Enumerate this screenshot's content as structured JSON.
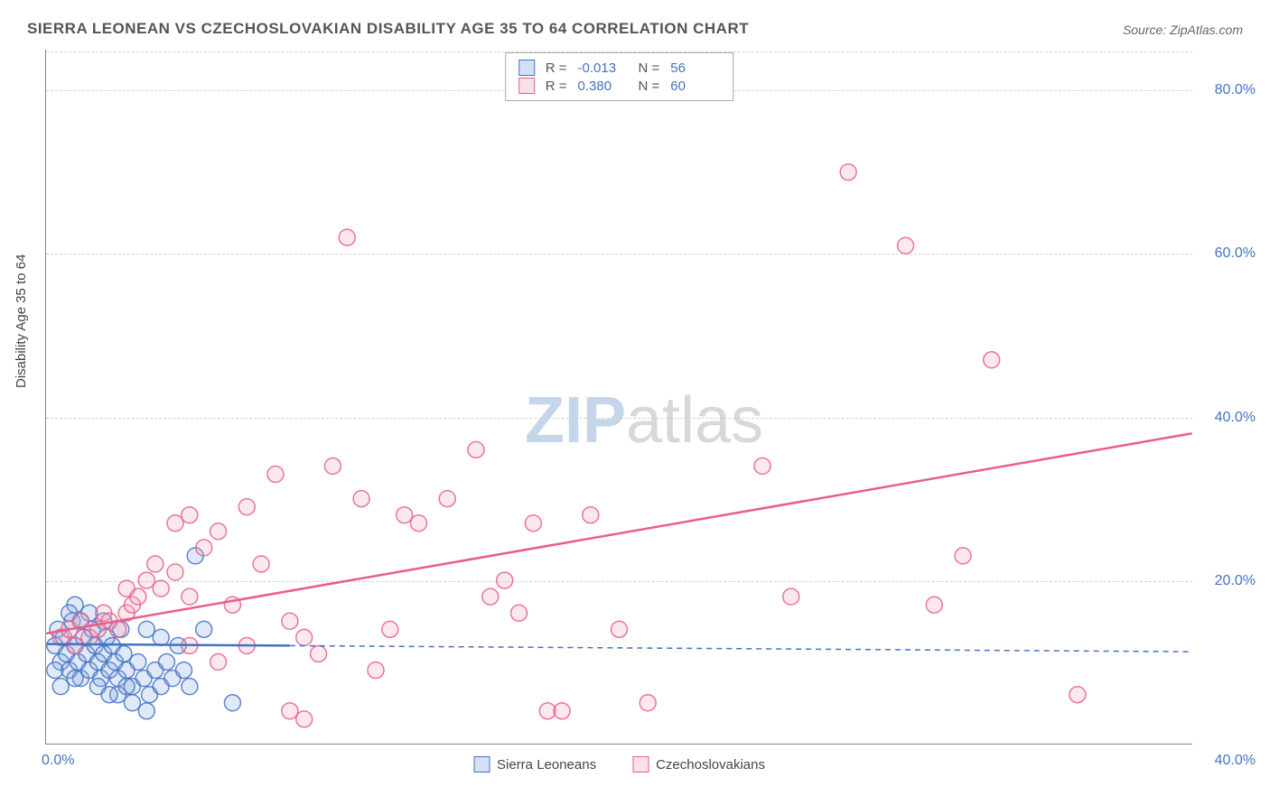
{
  "title": "SIERRA LEONEAN VS CZECHOSLOVAKIAN DISABILITY AGE 35 TO 64 CORRELATION CHART",
  "source": "Source: ZipAtlas.com",
  "y_axis_label": "Disability Age 35 to 64",
  "watermark_left": "ZIP",
  "watermark_right": "atlas",
  "chart": {
    "type": "scatter",
    "xlim": [
      0,
      40
    ],
    "ylim": [
      0,
      85
    ],
    "x_ticks": [
      {
        "pos": 0,
        "label": "0.0%"
      },
      {
        "pos": 40,
        "label": "40.0%"
      }
    ],
    "y_ticks": [
      {
        "pos": 20,
        "label": "20.0%"
      },
      {
        "pos": 40,
        "label": "40.0%"
      },
      {
        "pos": 60,
        "label": "60.0%"
      },
      {
        "pos": 80,
        "label": "80.0%"
      }
    ],
    "grid_color": "#d0d0d0",
    "background_color": "#ffffff",
    "marker_radius": 9,
    "marker_fill_opacity": 0.25,
    "marker_stroke_opacity": 0.85,
    "marker_stroke_width": 1.5,
    "trend_line_width": 2.5,
    "series": [
      {
        "name": "Sierra Leoneans",
        "color_fill": "#7ea6e0",
        "color_stroke": "#4472c4",
        "r_value": "-0.013",
        "n_value": "56",
        "trend": {
          "x1": 0,
          "y1": 12.2,
          "x2": 8.5,
          "y2": 12.0,
          "dashed_extend_to": 40,
          "dashed": true
        },
        "points": [
          [
            0.3,
            12
          ],
          [
            0.4,
            14
          ],
          [
            0.5,
            10
          ],
          [
            0.6,
            13
          ],
          [
            0.7,
            11
          ],
          [
            0.8,
            9
          ],
          [
            0.9,
            15
          ],
          [
            1.0,
            12
          ],
          [
            1.1,
            10
          ],
          [
            1.2,
            8
          ],
          [
            1.3,
            13
          ],
          [
            1.4,
            11
          ],
          [
            1.5,
            9
          ],
          [
            1.6,
            14
          ],
          [
            1.7,
            12
          ],
          [
            1.8,
            10
          ],
          [
            1.9,
            8
          ],
          [
            2.0,
            11
          ],
          [
            2.1,
            13
          ],
          [
            2.2,
            9
          ],
          [
            2.3,
            12
          ],
          [
            2.4,
            10
          ],
          [
            2.5,
            8
          ],
          [
            2.6,
            14
          ],
          [
            2.7,
            11
          ],
          [
            2.8,
            9
          ],
          [
            3.0,
            7
          ],
          [
            3.2,
            10
          ],
          [
            3.4,
            8
          ],
          [
            3.6,
            6
          ],
          [
            3.8,
            9
          ],
          [
            4.0,
            7
          ],
          [
            4.2,
            10
          ],
          [
            4.4,
            8
          ],
          [
            4.6,
            12
          ],
          [
            4.8,
            9
          ],
          [
            5.0,
            7
          ],
          [
            5.2,
            23
          ],
          [
            5.5,
            14
          ],
          [
            1.0,
            17
          ],
          [
            1.5,
            16
          ],
          [
            2.0,
            15
          ],
          [
            0.8,
            16
          ],
          [
            1.2,
            15
          ],
          [
            3.5,
            14
          ],
          [
            4.0,
            13
          ],
          [
            2.5,
            6
          ],
          [
            2.8,
            7
          ],
          [
            3.0,
            5
          ],
          [
            3.5,
            4
          ],
          [
            6.5,
            5
          ],
          [
            1.8,
            7
          ],
          [
            2.2,
            6
          ],
          [
            1.0,
            8
          ],
          [
            0.5,
            7
          ],
          [
            0.3,
            9
          ]
        ]
      },
      {
        "name": "Czechoslovakians",
        "color_fill": "#f4a6b8",
        "color_stroke": "#e85d8c",
        "r_value": "0.380",
        "n_value": "60",
        "trend": {
          "x1": 0,
          "y1": 13.5,
          "x2": 40,
          "y2": 38.0,
          "dashed": false
        },
        "points": [
          [
            0.5,
            13
          ],
          [
            0.8,
            14
          ],
          [
            1.0,
            12
          ],
          [
            1.2,
            15
          ],
          [
            1.5,
            13
          ],
          [
            1.8,
            14
          ],
          [
            2.0,
            16
          ],
          [
            2.2,
            15
          ],
          [
            2.5,
            14
          ],
          [
            2.8,
            16
          ],
          [
            3.0,
            17
          ],
          [
            3.5,
            20
          ],
          [
            4.0,
            19
          ],
          [
            4.5,
            21
          ],
          [
            5.0,
            18
          ],
          [
            5.5,
            24
          ],
          [
            5.0,
            28
          ],
          [
            6.0,
            26
          ],
          [
            6.5,
            17
          ],
          [
            7.0,
            29
          ],
          [
            7.5,
            22
          ],
          [
            8.0,
            33
          ],
          [
            8.5,
            15
          ],
          [
            9.0,
            13
          ],
          [
            9.5,
            11
          ],
          [
            10.0,
            34
          ],
          [
            10.5,
            62
          ],
          [
            11.0,
            30
          ],
          [
            11.5,
            9
          ],
          [
            12.0,
            14
          ],
          [
            12.5,
            28
          ],
          [
            13.0,
            27
          ],
          [
            14.0,
            30
          ],
          [
            15.0,
            36
          ],
          [
            15.5,
            18
          ],
          [
            16.0,
            20
          ],
          [
            16.5,
            16
          ],
          [
            17.0,
            27
          ],
          [
            17.5,
            4
          ],
          [
            18.0,
            4
          ],
          [
            19.0,
            28
          ],
          [
            20.0,
            14
          ],
          [
            21.0,
            5
          ],
          [
            25.0,
            34
          ],
          [
            26.0,
            18
          ],
          [
            28.0,
            70
          ],
          [
            30.0,
            61
          ],
          [
            31.0,
            17
          ],
          [
            32.0,
            23
          ],
          [
            33.0,
            47
          ],
          [
            36.0,
            6
          ],
          [
            8.5,
            4
          ],
          [
            9.0,
            3
          ],
          [
            7.0,
            12
          ],
          [
            6.0,
            10
          ],
          [
            5.0,
            12
          ],
          [
            4.5,
            27
          ],
          [
            3.8,
            22
          ],
          [
            3.2,
            18
          ],
          [
            2.8,
            19
          ]
        ]
      }
    ]
  },
  "stats_legend": {
    "r_label": "R",
    "n_label": "N",
    "eq": "="
  },
  "colors": {
    "axis_text": "#4472c4",
    "title_text": "#555555",
    "body_text": "#444444"
  }
}
